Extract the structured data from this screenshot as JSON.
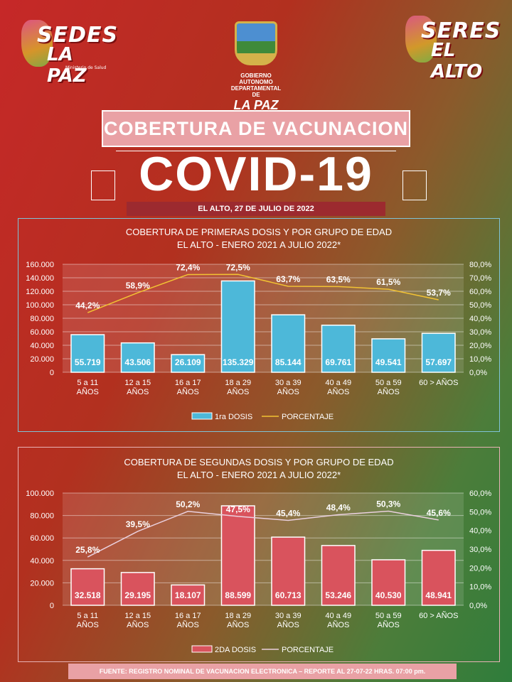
{
  "logos": {
    "left": {
      "line1": "SEDES",
      "line2": "LA PAZ",
      "tagline": "Ministerio de Salud"
    },
    "right": {
      "line1": "SERES",
      "line2": "EL ALTO"
    },
    "center": {
      "line1": "GOBIERNO AUTONOMO",
      "line2": "DEPARTAMENTAL DE",
      "line3": "LA PAZ"
    }
  },
  "header": {
    "title": "COBERTURA DE VACUNACION",
    "covid_label": "COVID-19",
    "date": "EL ALTO, 27 DE JULIO DE 2022"
  },
  "footer": "FUENTE: REGISTRO NOMINAL DE VACUNACION ELECTRONICA – REPORTE AL 27-07-22 HRAS. 07:00 pm.",
  "colors": {
    "bar1": "#4db8d9",
    "bar2": "#d9535d",
    "line1": "#f2c233",
    "line2": "#ead0de"
  },
  "chart_data": [
    {
      "type": "bar",
      "title": "COBERTURA DE PRIMERAS DOSIS Y POR GRUPO DE EDAD",
      "subtitle": "EL ALTO - ENERO 2021 A JULIO 2022*",
      "categories": [
        [
          "5 a 11",
          "AÑOS"
        ],
        [
          "12 a 15",
          "AÑOS"
        ],
        [
          "16 a 17",
          "AÑOS"
        ],
        [
          "18 a 29",
          "AÑOS"
        ],
        [
          "30 a 39",
          "AÑOS"
        ],
        [
          "40 a 49",
          "AÑOS"
        ],
        [
          "50 a 59",
          "AÑOS"
        ],
        [
          "60 > AÑOS",
          ""
        ]
      ],
      "series": [
        {
          "name": "1ra DOSIS",
          "kind": "bar",
          "values": [
            55719,
            43506,
            26109,
            135329,
            85144,
            69761,
            49541,
            57697
          ],
          "labels": [
            "55.719",
            "43.506",
            "26.109",
            "135.329",
            "85.144",
            "69.761",
            "49.541",
            "57.697"
          ]
        },
        {
          "name": "PORCENTAJE",
          "kind": "line",
          "values": [
            44.2,
            58.9,
            72.4,
            72.5,
            63.7,
            63.5,
            61.5,
            53.7
          ],
          "labels": [
            "44,2%",
            "58,9%",
            "72,4%",
            "72,5%",
            "63,7%",
            "63,5%",
            "61,5%",
            "53,7%"
          ]
        }
      ],
      "ylim": [
        0,
        160000
      ],
      "y2lim": [
        0,
        80
      ],
      "yticks": [
        "0",
        "20.000",
        "40.000",
        "60.000",
        "80.000",
        "100.000",
        "120.000",
        "140.000",
        "160.000"
      ],
      "y2ticks": [
        "0,0%",
        "10,0%",
        "20,0%",
        "30,0%",
        "40,0%",
        "50,0%",
        "60,0%",
        "70,0%",
        "80,0%"
      ],
      "grid": true,
      "legend": "bottom"
    },
    {
      "type": "bar",
      "title": "COBERTURA DE SEGUNDAS DOSIS Y POR GRUPO DE EDAD",
      "subtitle": "EL ALTO - ENERO 2021 A JULIO 2022*",
      "categories": [
        [
          "5 a 11",
          "AÑOS"
        ],
        [
          "12 a 15",
          "AÑOS"
        ],
        [
          "16 a 17",
          "AÑOS"
        ],
        [
          "18 a 29",
          "AÑOS"
        ],
        [
          "30 a 39",
          "AÑOS"
        ],
        [
          "40 a 49",
          "AÑOS"
        ],
        [
          "50 a 59",
          "AÑOS"
        ],
        [
          "60 > AÑOS",
          ""
        ]
      ],
      "series": [
        {
          "name": "2DA DOSIS",
          "kind": "bar",
          "values": [
            32518,
            29195,
            18107,
            88599,
            60713,
            53246,
            40530,
            48941
          ],
          "labels": [
            "32.518",
            "29.195",
            "18.107",
            "88.599",
            "60.713",
            "53.246",
            "40.530",
            "48.941"
          ]
        },
        {
          "name": "PORCENTAJE",
          "kind": "line",
          "values": [
            25.8,
            39.5,
            50.2,
            47.5,
            45.4,
            48.4,
            50.3,
            45.6
          ],
          "labels": [
            "25,8%",
            "39,5%",
            "50,2%",
            "47,5%",
            "45,4%",
            "48,4%",
            "50,3%",
            "45,6%"
          ]
        }
      ],
      "ylim": [
        0,
        100000
      ],
      "y2lim": [
        0,
        60
      ],
      "yticks": [
        "0",
        "20.000",
        "40.000",
        "60.000",
        "80.000",
        "100.000"
      ],
      "y2ticks": [
        "0,0%",
        "10,0%",
        "20,0%",
        "30,0%",
        "40,0%",
        "50,0%",
        "60,0%"
      ],
      "grid": true,
      "legend": "bottom"
    }
  ]
}
